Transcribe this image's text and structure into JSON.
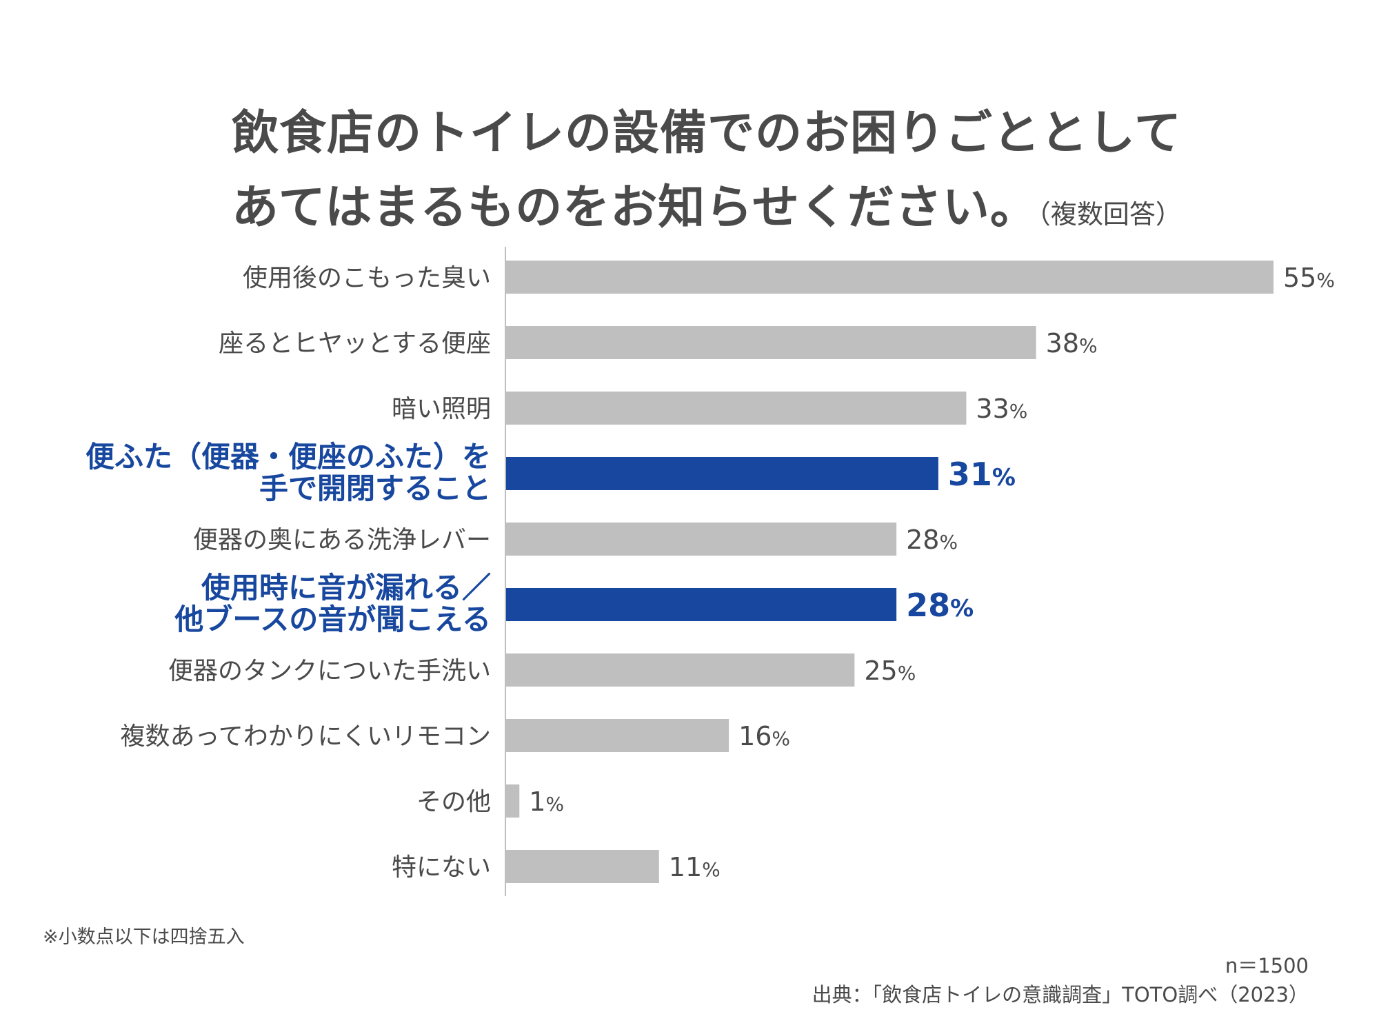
{
  "title": {
    "line1": "飲食店のトイレの設備でのお困りごととして",
    "line2": "あてはまるものをお知らせください。",
    "suffix": "（複数回答）"
  },
  "chart_data": {
    "type": "bar",
    "orientation": "horizontal",
    "categories": [
      [
        "使用後のこもった臭い"
      ],
      [
        "座るとヒヤッとする便座"
      ],
      [
        "暗い照明"
      ],
      [
        "便ふた（便器・便座のふた）を",
        "手で開閉すること"
      ],
      [
        "便器の奥にある洗浄レバー"
      ],
      [
        "使用時に音が漏れる／",
        "他ブースの音が聞こえる"
      ],
      [
        "便器のタンクについた手洗い"
      ],
      [
        "複数あってわかりにくいリモコン"
      ],
      [
        "その他"
      ],
      [
        "特にない"
      ]
    ],
    "values": [
      55,
      38,
      33,
      31,
      28,
      28,
      25,
      16,
      1,
      11
    ],
    "value_labels": [
      "55",
      "38",
      "33",
      "31",
      "28",
      "28",
      "25",
      "16",
      "1",
      "11"
    ],
    "unit": "%",
    "highlighted": [
      false,
      false,
      false,
      true,
      false,
      true,
      false,
      false,
      false,
      false
    ],
    "xlim": [
      0,
      55
    ],
    "grid": false,
    "colors": {
      "default_bar": "#bfbfbf",
      "highlight_bar": "#17479e",
      "axis": "#bfbfbf",
      "text": "#4a4a4a",
      "highlight_text": "#17479e"
    }
  },
  "footnote": "※小数点以下は四捨五入",
  "sample_size": "n＝1500",
  "source": "出典：「飲食店トイレの意識調査」TOTO調べ（2023）"
}
